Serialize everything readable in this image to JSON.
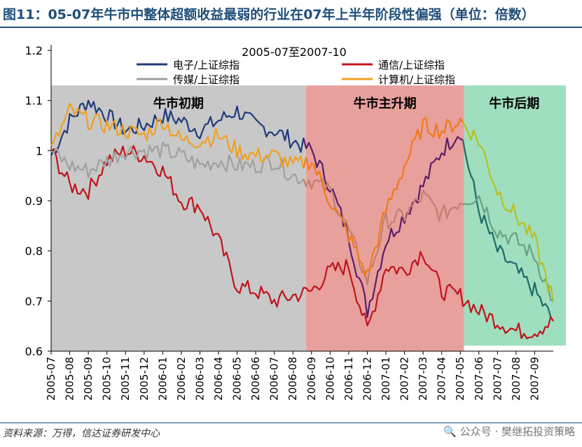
{
  "figure": {
    "title": "图11：05-07年牛市中整体超额收益最弱的行业在07年上半年阶段性偏强（单位：倍数）",
    "source": "资料来源：万得，信达证券研发中心",
    "watermark": "🔍 公众号 · 樊继拓投资策略"
  },
  "chart_data": {
    "type": "line",
    "title": "2005-07至2007-10",
    "ylim": [
      0.6,
      1.2
    ],
    "yticks": [
      "0.6",
      "0.7",
      "0.8",
      "0.9",
      "1",
      "1.1",
      "1.2"
    ],
    "x": [
      "2005-07",
      "2005-08",
      "2005-09",
      "2005-10",
      "2005-11",
      "2005-12",
      "2006-01",
      "2006-02",
      "2006-03",
      "2006-04",
      "2006-05",
      "2006-06",
      "2006-07",
      "2006-08",
      "2006-09",
      "2006-10",
      "2006-11",
      "2006-12",
      "2007-01",
      "2007-02",
      "2007-03",
      "2007-04",
      "2007-05",
      "2007-06",
      "2007-07",
      "2007-08",
      "2007-09",
      "2007-10"
    ],
    "xticks": [
      "2005-07",
      "2005-08",
      "2005-09",
      "2005-10",
      "2005-11",
      "2005-12",
      "2006-01",
      "2006-02",
      "2006-03",
      "2006-04",
      "2006-05",
      "2006-06",
      "2006-07",
      "2006-08",
      "2006-09",
      "2006-10",
      "2006-11",
      "2006-12",
      "2007-01",
      "2007-02",
      "2007-03",
      "2007-04",
      "2007-05",
      "2007-06",
      "2007-07",
      "2007-08",
      "2007-09"
    ],
    "phases": [
      {
        "label": "牛市初期",
        "from": 0,
        "to": 13.7,
        "color": "#c8c8c8"
      },
      {
        "label": "牛市主升期",
        "from": 13.7,
        "to": 22.2,
        "color": "#e8a09c"
      },
      {
        "label": "牛市后期",
        "from": 22.2,
        "to": 27,
        "color": "#9fdfbf"
      }
    ],
    "series": [
      {
        "name": "电子/上证综指",
        "color": "#1f3b7a",
        "values": [
          0.99,
          1.06,
          1.1,
          1.07,
          1.04,
          1.05,
          1.07,
          1.06,
          1.04,
          1.06,
          1.08,
          1.05,
          1.04,
          1.02,
          1.0,
          0.93,
          0.83,
          0.68,
          0.82,
          0.87,
          0.93,
          1.0,
          1.04,
          0.88,
          0.8,
          0.76,
          0.72,
          0.66
        ]
      },
      {
        "name": "通信/上证综指",
        "color": "#c0141c",
        "values": [
          1.0,
          0.93,
          0.92,
          0.98,
          1.0,
          0.99,
          0.96,
          0.9,
          0.89,
          0.82,
          0.73,
          0.72,
          0.7,
          0.71,
          0.72,
          0.76,
          0.77,
          0.64,
          0.77,
          0.76,
          0.8,
          0.72,
          0.71,
          0.68,
          0.66,
          0.64,
          0.64,
          0.66
        ]
      },
      {
        "name": "传媒/上证综指",
        "color": "#a0a0a0",
        "values": [
          1.0,
          0.97,
          0.96,
          0.98,
          1.0,
          1.0,
          1.0,
          0.99,
          0.97,
          0.98,
          0.97,
          0.97,
          0.98,
          0.95,
          0.94,
          0.92,
          0.84,
          0.74,
          0.86,
          0.87,
          0.91,
          0.87,
          0.9,
          0.91,
          0.84,
          0.82,
          0.79,
          0.7
        ]
      },
      {
        "name": "计算机/上证综指",
        "color": "#f0a020",
        "values": [
          1.0,
          1.08,
          1.06,
          1.05,
          1.04,
          1.03,
          1.06,
          1.02,
          1.02,
          1.03,
          1.0,
          0.99,
          0.99,
          0.97,
          0.98,
          0.9,
          0.83,
          0.75,
          0.88,
          0.97,
          1.05,
          1.04,
          1.06,
          1.02,
          0.92,
          0.87,
          0.82,
          0.7
        ]
      }
    ],
    "series_colors_in_phase": {
      "牛市主升期": {
        "电子/上证综指": "#5a1e6a",
        "计算机/上证综指": "#f07a18",
        "传媒/上证综指": "#c08070"
      },
      "牛市后期": {
        "电子/上证综指": "#1e6a6a",
        "计算机/上证综指": "#b8c020",
        "传媒/上证综指": "#6aa080"
      }
    }
  }
}
